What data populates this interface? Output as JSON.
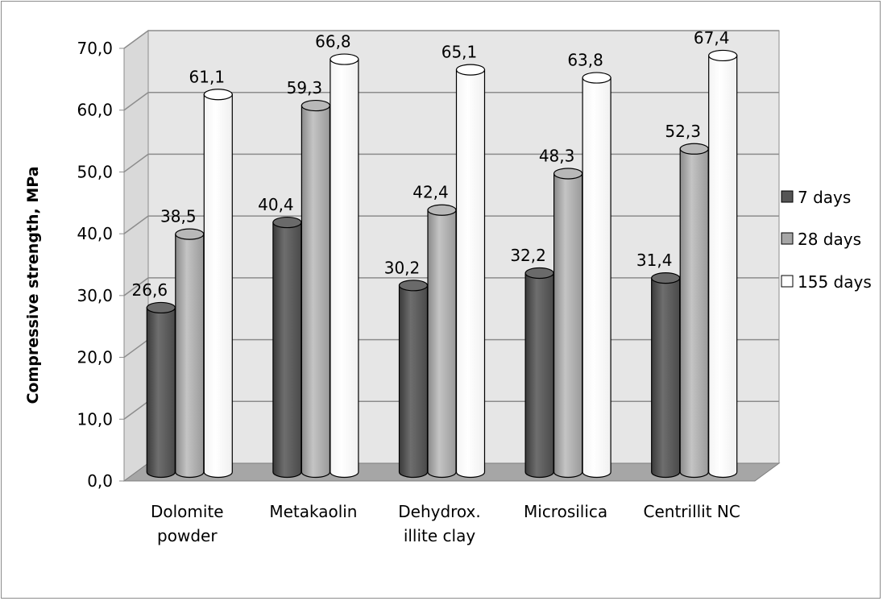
{
  "chart_data": {
    "type": "bar",
    "style": "3d-cylinder",
    "categories": [
      [
        "Dolomite",
        "powder"
      ],
      [
        "Metakaolin"
      ],
      [
        "Dehydrox.",
        "illite clay"
      ],
      [
        "Microsilica"
      ],
      [
        "Centrillit NC"
      ]
    ],
    "series": [
      {
        "name": "7 days",
        "values": [
          26.6,
          40.4,
          30.2,
          32.2,
          31.4
        ],
        "color": "#555555"
      },
      {
        "name": "28 days",
        "values": [
          38.5,
          59.3,
          42.4,
          48.3,
          52.3
        ],
        "color": "#a6a6a6"
      },
      {
        "name": "155 days",
        "values": [
          61.1,
          66.8,
          65.1,
          63.8,
          67.4
        ],
        "color": "#ffffff"
      }
    ],
    "data_labels": [
      [
        "26,6",
        "40,4",
        "30,2",
        "32,2",
        "31,4"
      ],
      [
        "38,5",
        "59,3",
        "42,4",
        "48,3",
        "52,3"
      ],
      [
        "61,1",
        "66,8",
        "65,1",
        "63,8",
        "67,4"
      ]
    ],
    "ylabel": "Compressive strength, MPa",
    "ylim": [
      0,
      70
    ],
    "yticks": [
      "0,0",
      "10,0",
      "20,0",
      "30,0",
      "40,0",
      "50,0",
      "60,0",
      "70,0"
    ],
    "grid": true,
    "legend_position": "right",
    "wall_color": "#e6e6e6",
    "floor_color": "#a6a6a6"
  }
}
